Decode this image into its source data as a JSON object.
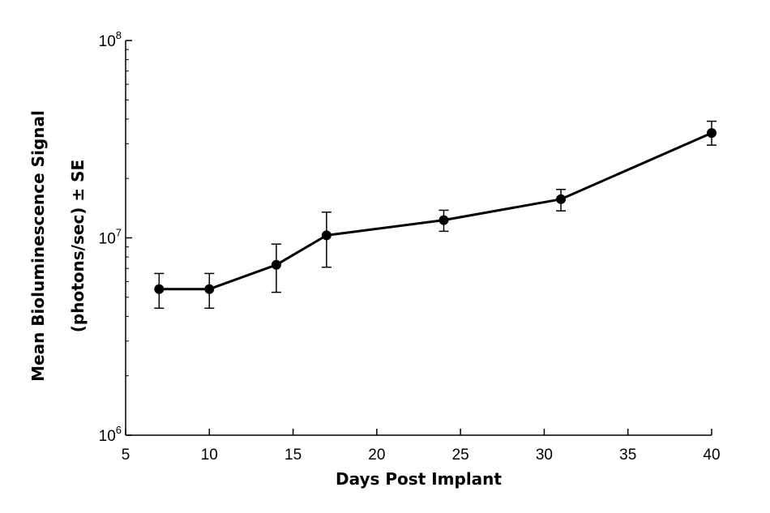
{
  "chart_data": {
    "type": "line",
    "xlabel": "Days Post Implant",
    "ylabel": "Mean Bioluminescence Signal",
    "ylabel_line2": "(photons/sec) ± SE",
    "x_scale": "linear",
    "y_scale": "log",
    "xlim": [
      5,
      40
    ],
    "ylim": [
      1000000,
      100000000
    ],
    "x_ticks": [
      5,
      10,
      15,
      20,
      25,
      30,
      35,
      40
    ],
    "y_ticks": [
      {
        "value": 1000000,
        "base": "10",
        "exp": "6"
      },
      {
        "value": 10000000,
        "base": "10",
        "exp": "7"
      },
      {
        "value": 100000000,
        "base": "10",
        "exp": "8"
      }
    ],
    "grid": false,
    "legend": "none",
    "series": [
      {
        "color": "#000000",
        "points": [
          {
            "x": 7,
            "y": 5500000,
            "err_low": 4400000,
            "err_high": 6600000
          },
          {
            "x": 10,
            "y": 5500000,
            "err_low": 4400000,
            "err_high": 6600000
          },
          {
            "x": 14,
            "y": 7300000,
            "err_low": 5300000,
            "err_high": 9300000
          },
          {
            "x": 17,
            "y": 10300000,
            "err_low": 7100000,
            "err_high": 13500000
          },
          {
            "x": 24,
            "y": 12300000,
            "err_low": 10800000,
            "err_high": 13800000
          },
          {
            "x": 31,
            "y": 15700000,
            "err_low": 13700000,
            "err_high": 17600000
          },
          {
            "x": 40,
            "y": 34000000,
            "err_low": 29500000,
            "err_high": 39000000
          }
        ]
      }
    ]
  }
}
